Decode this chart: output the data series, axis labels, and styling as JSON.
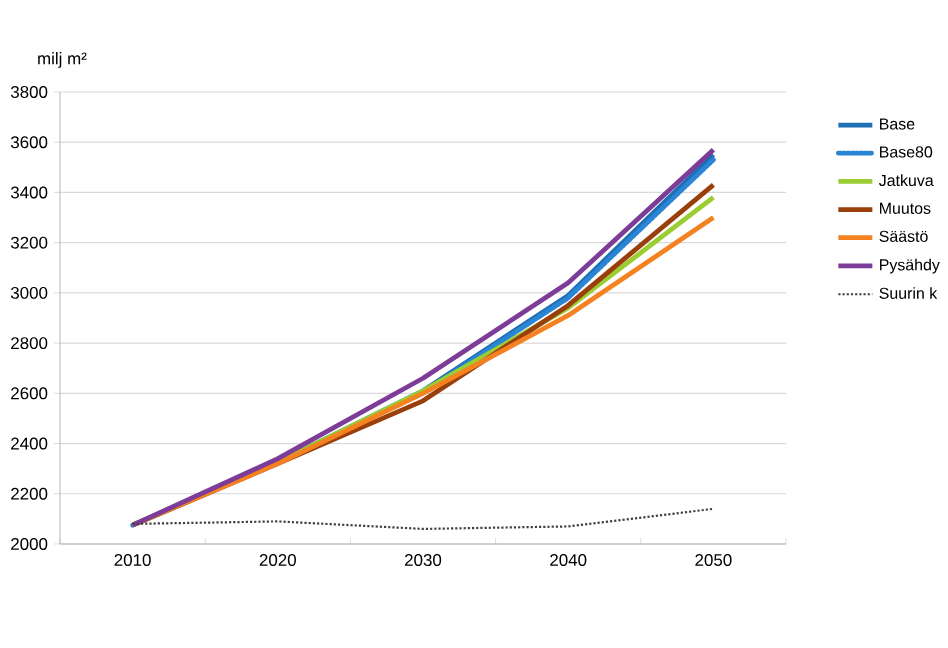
{
  "chart_data": {
    "type": "line",
    "ylabel": "milj m²",
    "categories": [
      "2010",
      "2020",
      "2030",
      "2040",
      "2050"
    ],
    "ylim": [
      2000,
      3800
    ],
    "yticks": [
      2000,
      2200,
      2400,
      2600,
      2800,
      3000,
      3200,
      3400,
      3600,
      3800
    ],
    "grid": "y",
    "legend": "right",
    "marker": "none",
    "series": [
      {
        "name": "Base",
        "color": "#1f6fb5",
        "line_style": "solid",
        "values": [
          2075,
          2325,
          2610,
          2990,
          3550
        ]
      },
      {
        "name": "Base80",
        "color": "#2a85d4",
        "line_style": "dashed",
        "values": [
          2075,
          2325,
          2605,
          2980,
          3530
        ]
      },
      {
        "name": "Jatkuva",
        "color": "#9acd32",
        "line_style": "solid",
        "values": [
          2075,
          2325,
          2610,
          2940,
          3380
        ]
      },
      {
        "name": "Muutos",
        "color": "#993f0b",
        "line_style": "solid",
        "values": [
          2075,
          2320,
          2570,
          2950,
          3430
        ]
      },
      {
        "name": "Säästö",
        "color": "#f58220",
        "line_style": "solid",
        "values": [
          2075,
          2320,
          2600,
          2910,
          3300
        ]
      },
      {
        "name": "Pysähdy",
        "color": "#7d3c98",
        "line_style": "solid",
        "values": [
          2075,
          2340,
          2660,
          3040,
          3570
        ]
      },
      {
        "name": "Suurin k",
        "color": "#404040",
        "line_style": "dotted",
        "values": [
          2080,
          2090,
          2060,
          2070,
          2140
        ]
      }
    ]
  }
}
